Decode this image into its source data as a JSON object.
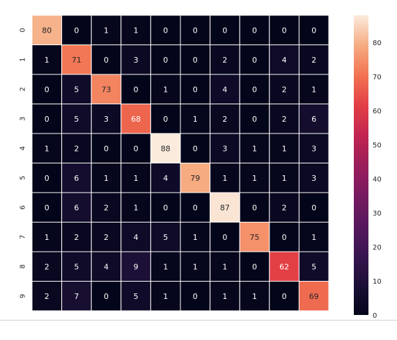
{
  "chart_data": {
    "type": "heatmap",
    "title": "",
    "xlabel": "",
    "ylabel": "",
    "x_tick_labels": [
      "0",
      "1",
      "2",
      "3",
      "4",
      "5",
      "6",
      "7",
      "8",
      "9"
    ],
    "y_tick_labels": [
      "0",
      "1",
      "2",
      "3",
      "4",
      "5",
      "6",
      "7",
      "8",
      "9"
    ],
    "values": [
      [
        80,
        0,
        1,
        1,
        0,
        0,
        0,
        0,
        0,
        0
      ],
      [
        1,
        71,
        0,
        3,
        0,
        0,
        2,
        0,
        4,
        2
      ],
      [
        0,
        5,
        73,
        0,
        1,
        0,
        4,
        0,
        2,
        1
      ],
      [
        0,
        5,
        3,
        68,
        0,
        1,
        2,
        0,
        2,
        6
      ],
      [
        1,
        2,
        0,
        0,
        88,
        0,
        3,
        1,
        1,
        3
      ],
      [
        0,
        6,
        1,
        1,
        4,
        79,
        1,
        1,
        1,
        3
      ],
      [
        0,
        6,
        2,
        1,
        0,
        0,
        87,
        0,
        2,
        0
      ],
      [
        1,
        2,
        2,
        4,
        5,
        1,
        0,
        75,
        0,
        1
      ],
      [
        2,
        5,
        4,
        9,
        1,
        1,
        1,
        0,
        62,
        5
      ],
      [
        2,
        7,
        0,
        5,
        1,
        0,
        1,
        1,
        0,
        69
      ]
    ],
    "colorbar": {
      "range": [
        0,
        88
      ],
      "ticks": [
        0,
        10,
        20,
        30,
        40,
        50,
        60,
        70,
        80
      ],
      "colormap": "rocket"
    },
    "grid": true,
    "cell_border_color": "#ffffff"
  }
}
